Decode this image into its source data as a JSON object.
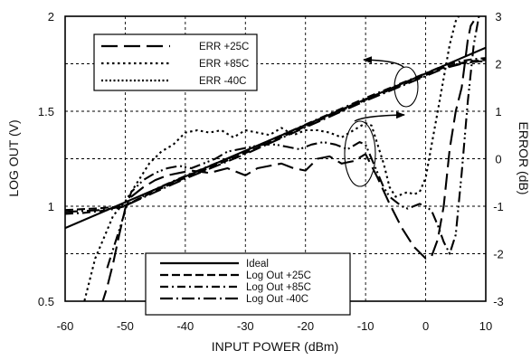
{
  "chart_data": {
    "type": "line",
    "xlabel": "INPUT POWER (dBm)",
    "ylabel": "LOG OUT (V)",
    "y2label": "ERROR (dB)",
    "xlim": [
      -60,
      10
    ],
    "ylim": [
      0.5,
      2.0
    ],
    "y2lim": [
      -3,
      3
    ],
    "x_ticks": [
      "-60",
      "-50",
      "-40",
      "-30",
      "-20",
      "-10",
      "0",
      "10"
    ],
    "y_ticks": [
      "0.5",
      "1",
      "1.5",
      "2"
    ],
    "y2_ticks": [
      "-3",
      "-2",
      "-1",
      "0",
      "1",
      "2",
      "3"
    ],
    "grid": true,
    "legend_err": [
      "ERR +25C",
      "ERR +85C",
      "ERR  -40C"
    ],
    "legend_logout": [
      "Ideal",
      "Log Out +25C",
      "Log Out +85C",
      "Log Out  -40C"
    ],
    "series": [
      {
        "name": "Ideal",
        "axis": "left",
        "style": "solid",
        "x": [
          -60,
          10
        ],
        "y": [
          0.885,
          1.835
        ]
      },
      {
        "name": "Log Out +25C",
        "axis": "left",
        "style": "dash",
        "x": [
          -60,
          -57,
          -54,
          -52,
          -50,
          -45,
          -40,
          -30,
          -20,
          -10,
          0,
          3,
          6,
          8,
          10
        ],
        "y": [
          0.98,
          0.985,
          0.99,
          0.995,
          1.005,
          1.08,
          1.15,
          1.28,
          1.42,
          1.56,
          1.69,
          1.73,
          1.755,
          1.765,
          1.77
        ]
      },
      {
        "name": "Log Out +85C",
        "axis": "left",
        "style": "dashdot",
        "x": [
          -60,
          -57,
          -54,
          -52,
          -50,
          -45,
          -40,
          -30,
          -20,
          -10,
          0,
          3,
          6,
          8,
          10
        ],
        "y": [
          0.96,
          0.965,
          0.975,
          0.985,
          1.0,
          1.09,
          1.16,
          1.29,
          1.43,
          1.57,
          1.7,
          1.74,
          1.765,
          1.775,
          1.78
        ]
      },
      {
        "name": "Log Out  -40C",
        "axis": "left",
        "style": "dashdotlong",
        "x": [
          -60,
          -57,
          -54,
          -52,
          -50,
          -45,
          -40,
          -30,
          -20,
          -10,
          0,
          3,
          6,
          8,
          10
        ],
        "y": [
          0.97,
          0.975,
          0.98,
          0.99,
          1.002,
          1.075,
          1.145,
          1.275,
          1.415,
          1.555,
          1.685,
          1.725,
          1.75,
          1.76,
          1.765
        ]
      },
      {
        "name": "ERR +25C",
        "axis": "right",
        "style": "longdash",
        "x": [
          -54,
          -53,
          -52,
          -51,
          -50,
          -49,
          -47,
          -45,
          -43,
          -41,
          -39,
          -36,
          -33,
          -30,
          -28,
          -26,
          -24,
          -22,
          -20,
          -18,
          -16,
          -14,
          -12,
          -10,
          -8,
          -6,
          -4,
          -2,
          0,
          1,
          2,
          3,
          4,
          5,
          6,
          6.5,
          7,
          7.5,
          8
        ],
        "y": [
          -3.1,
          -2.7,
          -2.2,
          -1.6,
          -1.05,
          -0.8,
          -0.6,
          -0.45,
          -0.35,
          -0.3,
          -0.25,
          -0.3,
          -0.2,
          -0.35,
          -0.2,
          -0.15,
          -0.1,
          -0.2,
          -0.25,
          0.0,
          0.05,
          -0.1,
          -0.05,
          0.1,
          -0.4,
          -0.95,
          -1.45,
          -1.85,
          -2.1,
          -2.05,
          -1.7,
          -1.0,
          0.2,
          1.0,
          1.5,
          2.0,
          2.5,
          2.8,
          2.9
        ]
      },
      {
        "name": "ERR +85C",
        "axis": "right",
        "style": "dot",
        "x": [
          -57,
          -56,
          -55,
          -54,
          -53,
          -52,
          -51,
          -50,
          -48,
          -46,
          -44,
          -42,
          -40,
          -38,
          -36,
          -34,
          -32,
          -30,
          -28,
          -26,
          -24,
          -22,
          -20,
          -18,
          -16,
          -14,
          -12,
          -10,
          -9,
          -8,
          -7,
          -6,
          -5,
          -4,
          -3,
          -2,
          -1,
          0,
          1,
          2,
          3,
          4,
          5,
          6
        ],
        "y": [
          -3.1,
          -2.6,
          -2.1,
          -1.8,
          -1.5,
          -1.2,
          -1.05,
          -0.9,
          -0.5,
          -0.1,
          0.15,
          0.3,
          0.55,
          0.6,
          0.55,
          0.6,
          0.45,
          0.6,
          0.55,
          0.5,
          0.65,
          0.5,
          0.6,
          0.6,
          0.55,
          0.45,
          0.6,
          0.75,
          0.7,
          0.3,
          -0.1,
          -0.6,
          -0.8,
          -0.75,
          -0.7,
          -0.75,
          -0.7,
          -0.4,
          0.3,
          1.0,
          1.7,
          2.4,
          2.9,
          3.1
        ]
      },
      {
        "name": "ERR  -40C",
        "axis": "right",
        "style": "dashdotdot",
        "x": [
          -53,
          -52,
          -51,
          -50,
          -49,
          -47,
          -45,
          -43,
          -41,
          -39,
          -37,
          -35,
          -33,
          -31,
          -29,
          -27,
          -25,
          -23,
          -21,
          -19,
          -17,
          -15,
          -13,
          -11,
          -10,
          -9,
          -8,
          -7,
          -6,
          -5,
          -4,
          -3,
          -2,
          -1,
          0,
          1,
          2,
          3,
          4,
          5,
          6,
          7,
          8,
          9
        ],
        "y": [
          -2.3,
          -1.9,
          -1.5,
          -1.1,
          -0.7,
          -0.45,
          -0.3,
          -0.2,
          -0.15,
          -0.2,
          -0.1,
          0.0,
          0.15,
          0.2,
          0.25,
          0.3,
          0.3,
          0.25,
          0.2,
          0.3,
          0.35,
          0.3,
          0.2,
          0.35,
          0.3,
          0.0,
          -0.3,
          -0.6,
          -0.8,
          -0.9,
          -1.0,
          -1.05,
          -1.0,
          -0.95,
          -1.0,
          -1.1,
          -1.4,
          -1.75,
          -2.0,
          -1.6,
          -0.3,
          1.2,
          2.4,
          3.1
        ]
      }
    ]
  }
}
